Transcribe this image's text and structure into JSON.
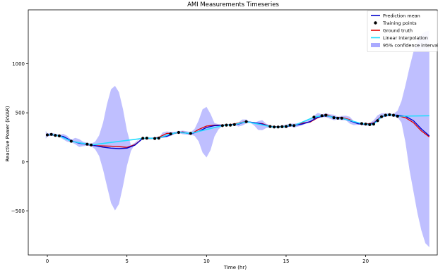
{
  "chart_data": {
    "type": "line",
    "title": "AMI Measurements Timeseries",
    "xlabel": "Time (hr)",
    "ylabel": "Reactive Power (kVAR)",
    "xlim": [
      -1.2,
      24.5
    ],
    "ylim": [
      -950,
      1550
    ],
    "xticks": [
      0,
      5,
      10,
      15,
      20
    ],
    "yticks": [
      -500,
      0,
      500,
      1000
    ],
    "legend_position": "top-right",
    "colors": {
      "prediction": "#0000cc",
      "ground_truth": "#e00000",
      "interpolation": "#22ddff",
      "confidence": "#aaaaff",
      "points": "#000000"
    },
    "legend": [
      {
        "label": "Prediction mean",
        "kind": "line",
        "color": "#0000cc"
      },
      {
        "label": "Training points",
        "kind": "dot",
        "color": "#000000"
      },
      {
        "label": "Ground truth",
        "kind": "line",
        "color": "#e00000"
      },
      {
        "label": "Linear interpolation",
        "kind": "line",
        "color": "#22ddff"
      },
      {
        "label": "95% confidence interval",
        "kind": "patch",
        "color": "#aaaaff"
      }
    ],
    "training_points": {
      "x": [
        0,
        0.25,
        0.5,
        0.75,
        1.5,
        2.5,
        2.75,
        6,
        6.25,
        6.75,
        7,
        7.75,
        8.25,
        9.0,
        11,
        11.25,
        11.5,
        11.75,
        12.5,
        14,
        14.25,
        14.5,
        14.75,
        15,
        15.25,
        15.5,
        16.75,
        17.25,
        17.5,
        18,
        18.25,
        18.5,
        19.75,
        20,
        20.25,
        20.5,
        20.75,
        21,
        21.25,
        21.5,
        21.75,
        22
      ],
      "y": [
        275,
        280,
        270,
        265,
        210,
        180,
        172,
        240,
        242,
        238,
        242,
        285,
        300,
        290,
        370,
        375,
        375,
        380,
        410,
        360,
        355,
        355,
        358,
        360,
        375,
        370,
        455,
        470,
        475,
        450,
        445,
        445,
        390,
        385,
        380,
        385,
        420,
        460,
        475,
        480,
        475,
        465
      ]
    },
    "series": [
      {
        "name": "Prediction mean",
        "x": [
          0,
          0.5,
          1,
          1.5,
          2,
          2.5,
          3,
          3.5,
          4,
          4.5,
          5,
          5.5,
          6,
          6.5,
          7,
          7.5,
          8,
          8.5,
          9,
          9.5,
          10,
          10.5,
          11,
          11.5,
          12,
          12.5,
          13,
          13.5,
          14,
          14.5,
          15,
          15.5,
          16,
          16.5,
          17,
          17.5,
          18,
          18.5,
          19,
          19.5,
          20,
          20.5,
          21,
          21.5,
          22,
          22.5,
          23,
          23.5,
          24
        ],
        "y": [
          275,
          272,
          258,
          215,
          190,
          178,
          165,
          150,
          140,
          135,
          140,
          170,
          240,
          240,
          245,
          260,
          295,
          300,
          285,
          310,
          350,
          370,
          372,
          378,
          385,
          410,
          400,
          385,
          360,
          355,
          360,
          372,
          385,
          410,
          455,
          470,
          455,
          445,
          420,
          390,
          380,
          392,
          460,
          478,
          475,
          465,
          420,
          335,
          265
        ]
      },
      {
        "name": "Ground truth",
        "x": [
          0,
          0.5,
          1,
          1.5,
          2,
          2.5,
          3,
          3.5,
          4,
          4.5,
          5,
          5.5,
          6,
          6.5,
          7,
          7.5,
          8,
          8.5,
          9,
          9.5,
          10,
          10.5,
          11,
          11.5,
          12,
          12.5,
          13,
          13.5,
          14,
          14.5,
          15,
          15.5,
          16,
          16.5,
          17,
          17.5,
          18,
          18.5,
          19,
          19.5,
          20,
          20.5,
          21,
          21.5,
          22,
          22.5,
          23,
          23.5,
          24
        ],
        "y": [
          278,
          270,
          255,
          212,
          195,
          175,
          165,
          162,
          160,
          155,
          148,
          175,
          240,
          238,
          250,
          290,
          290,
          305,
          282,
          330,
          365,
          375,
          375,
          380,
          395,
          412,
          395,
          390,
          362,
          358,
          362,
          375,
          395,
          405,
          450,
          485,
          450,
          452,
          430,
          390,
          385,
          395,
          465,
          482,
          470,
          450,
          400,
          315,
          255
        ]
      },
      {
        "name": "Linear interpolation",
        "x": [
          0,
          0.25,
          0.5,
          0.75,
          1.5,
          2.5,
          2.75,
          6,
          6.25,
          6.75,
          7,
          7.75,
          8.25,
          9.0,
          11,
          11.25,
          11.5,
          11.75,
          12.5,
          14,
          14.25,
          14.5,
          14.75,
          15,
          15.25,
          15.5,
          16.75,
          17.25,
          17.5,
          18,
          18.25,
          18.5,
          19.75,
          20,
          20.25,
          20.5,
          20.75,
          21,
          21.25,
          21.5,
          21.75,
          22,
          24
        ],
        "y": [
          275,
          280,
          270,
          265,
          210,
          180,
          172,
          240,
          242,
          238,
          242,
          285,
          300,
          290,
          370,
          375,
          375,
          380,
          410,
          360,
          355,
          355,
          358,
          360,
          375,
          370,
          455,
          470,
          475,
          450,
          445,
          445,
          390,
          385,
          380,
          385,
          420,
          460,
          475,
          480,
          475,
          465,
          470
        ]
      }
    ],
    "confidence_interval": {
      "name": "95% confidence interval",
      "x": [
        -0.1,
        0,
        0.25,
        0.5,
        0.75,
        1,
        1.25,
        1.5,
        1.75,
        2,
        2.25,
        2.5,
        2.75,
        3,
        3.25,
        3.5,
        3.75,
        4,
        4.25,
        4.5,
        4.75,
        5,
        5.25,
        5.5,
        5.75,
        6,
        6.25,
        6.5,
        6.75,
        7,
        7.25,
        7.5,
        7.75,
        8,
        8.25,
        8.5,
        8.75,
        9,
        9.25,
        9.5,
        9.75,
        10,
        10.25,
        10.5,
        10.75,
        11,
        11.25,
        11.5,
        11.75,
        12,
        12.25,
        12.5,
        12.75,
        13,
        13.25,
        13.5,
        13.75,
        14,
        14.25,
        14.5,
        14.75,
        15,
        15.25,
        15.5,
        15.75,
        16,
        16.25,
        16.5,
        16.75,
        17,
        17.25,
        17.5,
        17.75,
        18,
        18.25,
        18.5,
        18.75,
        19,
        19.25,
        19.5,
        19.75,
        20,
        20.25,
        20.5,
        20.75,
        21,
        21.25,
        21.5,
        21.75,
        22,
        22.25,
        22.5,
        22.75,
        23,
        23.25,
        23.5,
        23.75,
        24
      ],
      "lower": [
        235,
        260,
        270,
        262,
        255,
        228,
        205,
        200,
        180,
        152,
        160,
        165,
        160,
        130,
        60,
        -80,
        -250,
        -420,
        -495,
        -430,
        -250,
        -40,
        110,
        180,
        225,
        232,
        235,
        232,
        230,
        240,
        262,
        250,
        265,
        282,
        292,
        282,
        278,
        278,
        265,
        210,
        95,
        45,
        120,
        260,
        330,
        365,
        370,
        370,
        375,
        360,
        370,
        392,
        400,
        370,
        325,
        322,
        345,
        350,
        345,
        345,
        350,
        345,
        365,
        350,
        360,
        372,
        390,
        400,
        430,
        445,
        455,
        455,
        440,
        425,
        432,
        425,
        425,
        390,
        375,
        378,
        380,
        375,
        365,
        378,
        415,
        445,
        462,
        468,
        460,
        455,
        400,
        200,
        -80,
        -300,
        -520,
        -700,
        -830,
        -870
      ],
      "upper": [
        315,
        290,
        295,
        288,
        275,
        285,
        265,
        225,
        245,
        232,
        205,
        195,
        185,
        205,
        270,
        400,
        590,
        740,
        775,
        710,
        540,
        320,
        170,
        195,
        230,
        245,
        248,
        248,
        248,
        248,
        300,
        310,
        305,
        305,
        312,
        318,
        312,
        302,
        335,
        420,
        535,
        560,
        490,
        395,
        385,
        380,
        380,
        380,
        385,
        400,
        432,
        432,
        400,
        395,
        415,
        425,
        390,
        370,
        365,
        365,
        370,
        378,
        390,
        390,
        395,
        398,
        420,
        430,
        470,
        500,
        485,
        495,
        485,
        480,
        458,
        468,
        470,
        460,
        415,
        400,
        400,
        395,
        395,
        425,
        475,
        495,
        495,
        492,
        490,
        520,
        620,
        780,
        960,
        1120,
        1230,
        1300,
        1330,
        1340
      ]
    }
  }
}
